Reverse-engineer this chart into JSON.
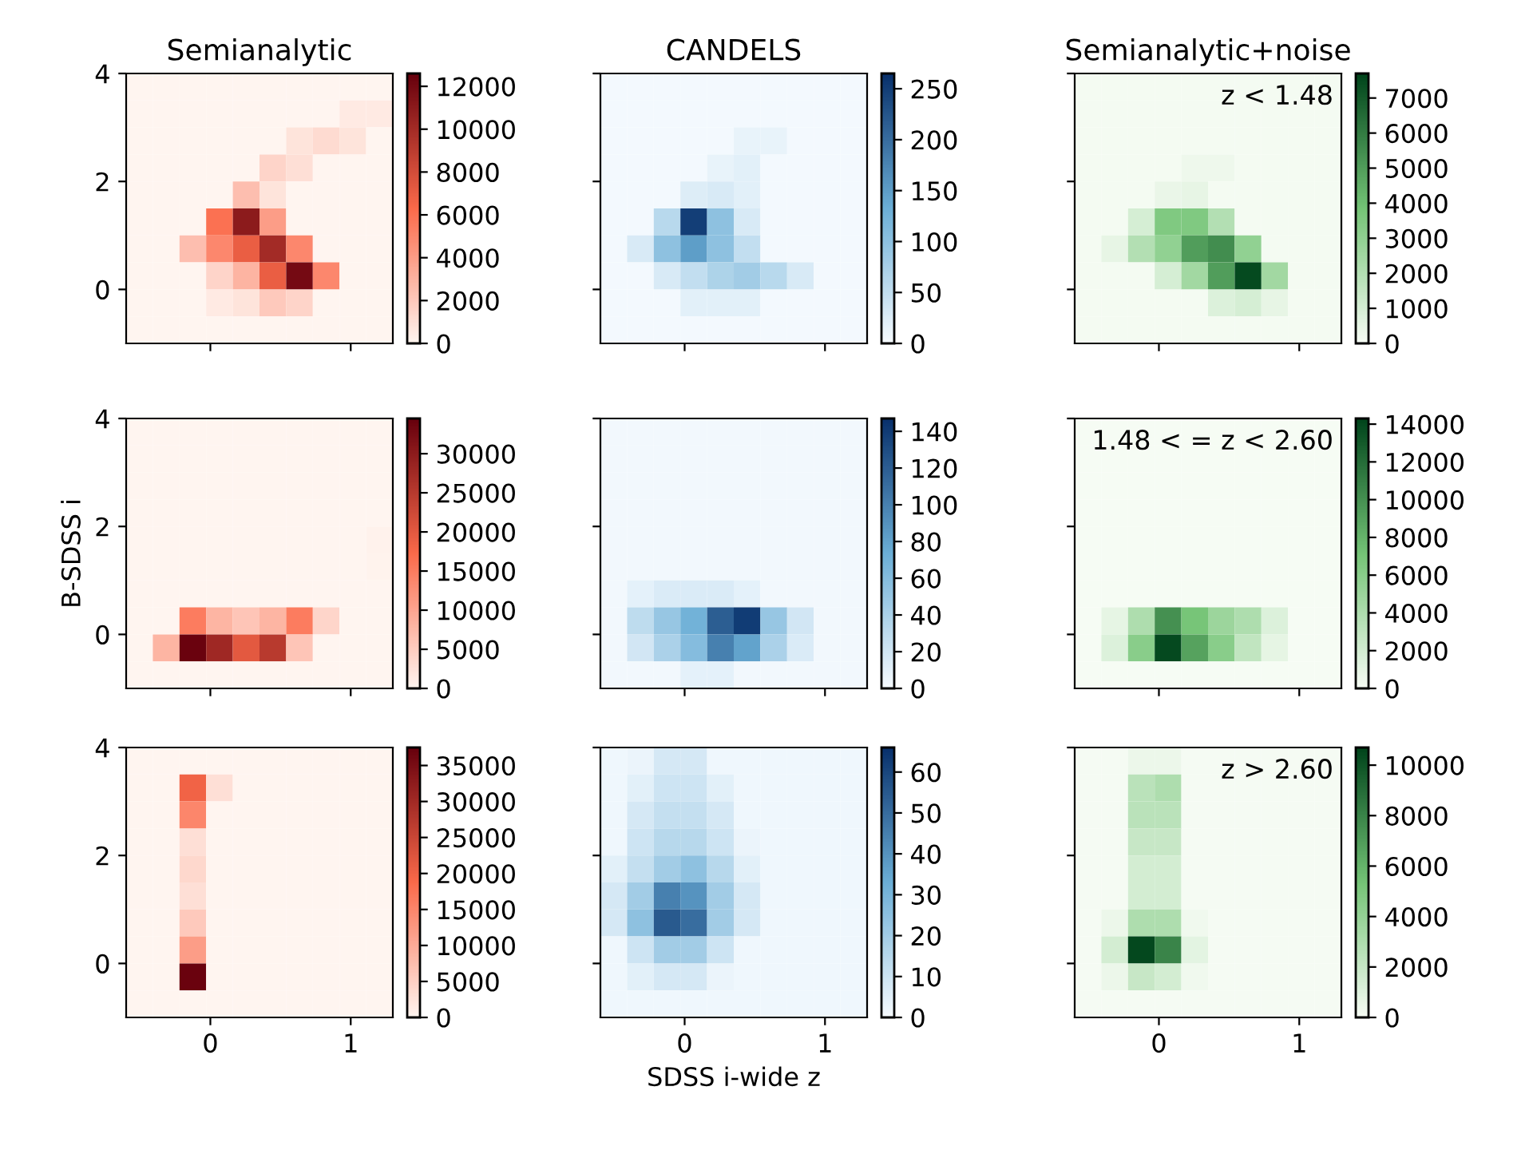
{
  "chart_data": [
    {
      "type": "heatmap",
      "title": "Semianalytic",
      "colors": [
        "#fff5f0",
        "#fb6a4a",
        "#67000d"
      ],
      "xlim": [
        -0.6,
        1.3
      ],
      "ylim": [
        -1,
        4
      ],
      "xticks": [
        0,
        1
      ],
      "yticks": [
        0,
        2,
        4
      ],
      "tick_labels": "y",
      "clim": [
        0,
        12600
      ],
      "cticks": [
        0,
        2000,
        4000,
        6000,
        8000,
        10000,
        12000
      ],
      "cells": [
        [
          0,
          0,
          0,
          0,
          0,
          0,
          0,
          0,
          0,
          0
        ],
        [
          0,
          0,
          0,
          0,
          0,
          0,
          0,
          0,
          500,
          500
        ],
        [
          0,
          0,
          0,
          0,
          0,
          0,
          800,
          1200,
          800,
          0
        ],
        [
          0,
          0,
          0,
          0,
          0,
          1500,
          1000,
          0,
          0,
          0
        ],
        [
          0,
          0,
          0,
          0,
          2500,
          800,
          0,
          0,
          0,
          0
        ],
        [
          0,
          0,
          0,
          6000,
          11000,
          4000,
          0,
          0,
          0,
          0
        ],
        [
          0,
          0,
          2500,
          5000,
          7000,
          10000,
          5000,
          0,
          0,
          0
        ],
        [
          0,
          0,
          0,
          1500,
          3000,
          7000,
          12000,
          5000,
          0,
          0
        ],
        [
          0,
          0,
          0,
          500,
          800,
          2000,
          1500,
          0,
          0,
          0
        ],
        [
          0,
          0,
          0,
          0,
          0,
          0,
          0,
          0,
          0,
          0
        ]
      ]
    },
    {
      "type": "heatmap",
      "title": "CANDELS",
      "colors": [
        "#f7fbff",
        "#6baed6",
        "#08306b"
      ],
      "xlim": [
        -0.6,
        1.3
      ],
      "ylim": [
        -1,
        4
      ],
      "xticks": [
        0,
        1
      ],
      "yticks": [
        0,
        2,
        4
      ],
      "tick_labels": false,
      "clim": [
        0,
        265
      ],
      "cticks": [
        0,
        50,
        100,
        150,
        200,
        250
      ],
      "cells": [
        [
          5,
          5,
          5,
          5,
          5,
          5,
          5,
          5,
          5,
          5
        ],
        [
          5,
          5,
          5,
          5,
          5,
          5,
          5,
          5,
          5,
          5
        ],
        [
          5,
          5,
          5,
          5,
          5,
          15,
          15,
          5,
          5,
          5
        ],
        [
          5,
          5,
          5,
          5,
          15,
          20,
          5,
          5,
          5,
          5
        ],
        [
          5,
          5,
          5,
          25,
          30,
          20,
          5,
          5,
          5,
          5
        ],
        [
          5,
          5,
          60,
          250,
          100,
          30,
          5,
          5,
          5,
          5
        ],
        [
          5,
          30,
          100,
          150,
          100,
          50,
          5,
          5,
          5,
          5
        ],
        [
          5,
          5,
          30,
          50,
          70,
          80,
          60,
          30,
          5,
          5
        ],
        [
          5,
          5,
          5,
          20,
          20,
          20,
          5,
          5,
          5,
          5
        ],
        [
          5,
          5,
          5,
          5,
          5,
          5,
          5,
          5,
          5,
          5
        ]
      ]
    },
    {
      "type": "heatmap",
      "title": "Semianalytic+noise",
      "colors": [
        "#f7fcf5",
        "#74c476",
        "#00441b"
      ],
      "xlim": [
        -0.6,
        1.3
      ],
      "ylim": [
        -1,
        4
      ],
      "xticks": [
        0,
        1
      ],
      "yticks": [
        0,
        2,
        4
      ],
      "tick_labels": false,
      "clim": [
        0,
        7700
      ],
      "cticks": [
        0,
        1000,
        2000,
        3000,
        4000,
        5000,
        6000,
        7000
      ],
      "annotations": [
        "z < 1.48"
      ],
      "cells": [
        [
          100,
          100,
          100,
          100,
          100,
          100,
          100,
          100,
          100,
          100
        ],
        [
          100,
          100,
          100,
          100,
          100,
          100,
          100,
          100,
          100,
          100
        ],
        [
          100,
          100,
          100,
          100,
          100,
          100,
          100,
          100,
          100,
          100
        ],
        [
          100,
          100,
          100,
          100,
          300,
          300,
          100,
          100,
          100,
          100
        ],
        [
          100,
          100,
          100,
          400,
          500,
          100,
          100,
          100,
          100,
          100
        ],
        [
          100,
          100,
          1000,
          3500,
          3500,
          2000,
          100,
          100,
          100,
          100
        ],
        [
          100,
          500,
          2000,
          3000,
          5000,
          5500,
          3000,
          100,
          100,
          100
        ],
        [
          100,
          100,
          100,
          1000,
          2500,
          5000,
          7500,
          2500,
          100,
          100
        ],
        [
          100,
          100,
          100,
          100,
          100,
          800,
          1000,
          500,
          100,
          100
        ],
        [
          100,
          100,
          100,
          100,
          100,
          100,
          100,
          100,
          100,
          100
        ]
      ]
    },
    {
      "type": "heatmap",
      "colors": [
        "#fff5f0",
        "#fb6a4a",
        "#67000d"
      ],
      "ylabel": "B-SDSS i",
      "xlim": [
        -0.6,
        1.3
      ],
      "ylim": [
        -1,
        4
      ],
      "xticks": [
        0,
        1
      ],
      "yticks": [
        0,
        2,
        4
      ],
      "tick_labels": "y",
      "clim": [
        0,
        34500
      ],
      "cticks": [
        0,
        5000,
        10000,
        15000,
        20000,
        25000,
        30000
      ],
      "cells": [
        [
          0,
          0,
          0,
          0,
          0,
          0,
          0,
          0,
          0,
          0
        ],
        [
          0,
          0,
          0,
          0,
          0,
          0,
          0,
          0,
          0,
          0
        ],
        [
          0,
          0,
          0,
          0,
          0,
          0,
          0,
          0,
          0,
          0
        ],
        [
          0,
          0,
          0,
          0,
          0,
          0,
          0,
          0,
          0,
          0
        ],
        [
          0,
          0,
          0,
          0,
          0,
          0,
          0,
          0,
          0,
          500
        ],
        [
          0,
          0,
          0,
          0,
          0,
          0,
          0,
          0,
          0,
          300
        ],
        [
          0,
          0,
          0,
          0,
          0,
          0,
          0,
          0,
          0,
          0
        ],
        [
          0,
          0,
          15000,
          8000,
          6000,
          8000,
          15000,
          4000,
          0,
          0
        ],
        [
          0,
          8000,
          34000,
          28000,
          20000,
          25000,
          6000,
          0,
          0,
          0
        ],
        [
          0,
          0,
          0,
          0,
          0,
          0,
          0,
          0,
          0,
          0
        ]
      ]
    },
    {
      "type": "heatmap",
      "colors": [
        "#f7fbff",
        "#6baed6",
        "#08306b"
      ],
      "xlim": [
        -0.6,
        1.3
      ],
      "ylim": [
        -1,
        4
      ],
      "xticks": [
        0,
        1
      ],
      "yticks": [
        0,
        2,
        4
      ],
      "tick_labels": false,
      "clim": [
        0,
        147
      ],
      "cticks": [
        0,
        20,
        40,
        60,
        80,
        100,
        120,
        140
      ],
      "cells": [
        [
          3,
          3,
          3,
          3,
          3,
          3,
          3,
          3,
          3,
          3
        ],
        [
          3,
          3,
          3,
          3,
          3,
          3,
          3,
          3,
          3,
          3
        ],
        [
          3,
          3,
          3,
          3,
          3,
          3,
          3,
          3,
          3,
          3
        ],
        [
          3,
          3,
          3,
          3,
          3,
          3,
          3,
          3,
          3,
          3
        ],
        [
          3,
          3,
          3,
          3,
          3,
          3,
          3,
          3,
          3,
          3
        ],
        [
          3,
          3,
          3,
          3,
          3,
          3,
          3,
          3,
          3,
          3
        ],
        [
          3,
          10,
          15,
          15,
          15,
          10,
          3,
          3,
          3,
          3
        ],
        [
          3,
          30,
          50,
          70,
          120,
          140,
          50,
          20,
          3,
          3
        ],
        [
          3,
          20,
          40,
          60,
          100,
          80,
          40,
          15,
          3,
          3
        ],
        [
          3,
          3,
          3,
          10,
          10,
          3,
          3,
          3,
          3,
          3
        ]
      ]
    },
    {
      "type": "heatmap",
      "colors": [
        "#f7fcf5",
        "#74c476",
        "#00441b"
      ],
      "xlim": [
        -0.6,
        1.3
      ],
      "ylim": [
        -1,
        4
      ],
      "xticks": [
        0,
        1
      ],
      "yticks": [
        0,
        2,
        4
      ],
      "tick_labels": false,
      "clim": [
        0,
        14300
      ],
      "cticks": [
        0,
        2000,
        4000,
        6000,
        8000,
        10000,
        12000,
        14000
      ],
      "annotations": [
        "1.48 < = z < 2.60"
      ],
      "cells": [
        [
          100,
          100,
          100,
          100,
          100,
          100,
          100,
          100,
          100,
          100
        ],
        [
          100,
          100,
          100,
          100,
          100,
          100,
          100,
          100,
          100,
          100
        ],
        [
          100,
          100,
          100,
          100,
          100,
          100,
          100,
          100,
          100,
          100
        ],
        [
          100,
          100,
          100,
          100,
          100,
          100,
          100,
          100,
          100,
          100
        ],
        [
          100,
          100,
          100,
          100,
          100,
          100,
          100,
          100,
          100,
          100
        ],
        [
          100,
          100,
          100,
          100,
          100,
          100,
          100,
          100,
          100,
          100
        ],
        [
          100,
          100,
          100,
          100,
          100,
          100,
          100,
          100,
          100,
          100
        ],
        [
          100,
          1000,
          4000,
          10000,
          7000,
          5000,
          4000,
          1500,
          100,
          100
        ],
        [
          100,
          1500,
          6000,
          14000,
          9000,
          6000,
          3000,
          1000,
          100,
          100
        ],
        [
          100,
          100,
          100,
          100,
          100,
          100,
          100,
          100,
          100,
          100
        ]
      ]
    },
    {
      "type": "heatmap",
      "colors": [
        "#fff5f0",
        "#fb6a4a",
        "#67000d"
      ],
      "xlim": [
        -0.6,
        1.3
      ],
      "ylim": [
        -1,
        4
      ],
      "xticks": [
        0,
        1
      ],
      "yticks": [
        0,
        2,
        4
      ],
      "clim": [
        0,
        37500
      ],
      "cticks": [
        0,
        5000,
        10000,
        15000,
        20000,
        25000,
        30000,
        35000
      ],
      "cells": [
        [
          0,
          0,
          0,
          0,
          0,
          0,
          0,
          0,
          0,
          0
        ],
        [
          0,
          0,
          20000,
          3000,
          0,
          0,
          0,
          0,
          0,
          0
        ],
        [
          0,
          0,
          15000,
          0,
          0,
          0,
          0,
          0,
          0,
          0
        ],
        [
          0,
          0,
          3000,
          0,
          0,
          0,
          0,
          0,
          0,
          0
        ],
        [
          0,
          0,
          4000,
          0,
          0,
          0,
          0,
          0,
          0,
          0
        ],
        [
          0,
          0,
          3000,
          0,
          0,
          0,
          0,
          0,
          0,
          0
        ],
        [
          0,
          0,
          6000,
          0,
          0,
          0,
          0,
          0,
          0,
          0
        ],
        [
          0,
          0,
          12000,
          0,
          0,
          0,
          0,
          0,
          0,
          0
        ],
        [
          0,
          0,
          37000,
          0,
          0,
          0,
          0,
          0,
          0,
          0
        ],
        [
          0,
          0,
          0,
          0,
          0,
          0,
          0,
          0,
          0,
          0
        ]
      ]
    },
    {
      "type": "heatmap",
      "colors": [
        "#f7fbff",
        "#6baed6",
        "#08306b"
      ],
      "xlabel": "SDSS i-wide z",
      "xlim": [
        -0.6,
        1.3
      ],
      "ylim": [
        -1,
        4
      ],
      "xticks": [
        0,
        1
      ],
      "yticks": [
        0,
        2,
        4
      ],
      "tick_labels": "x",
      "clim": [
        0,
        66
      ],
      "cticks": [
        0,
        10,
        20,
        30,
        40,
        50,
        60
      ],
      "cells": [
        [
          2,
          3,
          8,
          8,
          2,
          2,
          2,
          2,
          2,
          2
        ],
        [
          2,
          5,
          10,
          10,
          5,
          2,
          2,
          2,
          2,
          2
        ],
        [
          2,
          8,
          12,
          12,
          8,
          2,
          2,
          2,
          2,
          2
        ],
        [
          2,
          10,
          15,
          15,
          10,
          3,
          2,
          2,
          2,
          2
        ],
        [
          5,
          12,
          20,
          25,
          15,
          5,
          2,
          2,
          2,
          2
        ],
        [
          8,
          20,
          45,
          40,
          20,
          8,
          2,
          2,
          2,
          2
        ],
        [
          8,
          25,
          55,
          50,
          20,
          8,
          2,
          2,
          2,
          2
        ],
        [
          2,
          10,
          20,
          20,
          10,
          2,
          2,
          2,
          2,
          2
        ],
        [
          2,
          5,
          8,
          8,
          3,
          2,
          2,
          2,
          2,
          2
        ],
        [
          2,
          2,
          2,
          2,
          2,
          2,
          2,
          2,
          2,
          2
        ]
      ]
    },
    {
      "type": "heatmap",
      "colors": [
        "#f7fcf5",
        "#74c476",
        "#00441b"
      ],
      "xlim": [
        -0.6,
        1.3
      ],
      "ylim": [
        -1,
        4
      ],
      "xticks": [
        0,
        1
      ],
      "yticks": [
        0,
        2,
        4
      ],
      "tick_labels": "x",
      "clim": [
        0,
        10700
      ],
      "cticks": [
        0,
        2000,
        4000,
        6000,
        8000,
        10000
      ],
      "annotations": [
        "z > 2.60"
      ],
      "cells": [
        [
          100,
          100,
          500,
          500,
          100,
          100,
          100,
          100,
          100,
          100
        ],
        [
          100,
          100,
          2500,
          3000,
          100,
          100,
          100,
          100,
          100,
          100
        ],
        [
          100,
          100,
          2500,
          2500,
          100,
          100,
          100,
          100,
          100,
          100
        ],
        [
          100,
          100,
          2000,
          2000,
          100,
          100,
          100,
          100,
          100,
          100
        ],
        [
          100,
          100,
          1500,
          1500,
          100,
          100,
          100,
          100,
          100,
          100
        ],
        [
          100,
          100,
          1500,
          1500,
          100,
          100,
          100,
          100,
          100,
          100
        ],
        [
          100,
          500,
          3000,
          3000,
          300,
          100,
          100,
          100,
          100,
          100
        ],
        [
          100,
          1500,
          10500,
          8000,
          800,
          100,
          100,
          100,
          100,
          100
        ],
        [
          100,
          500,
          2000,
          1500,
          300,
          100,
          100,
          100,
          100,
          100
        ],
        [
          100,
          100,
          100,
          100,
          100,
          100,
          100,
          100,
          100,
          100
        ]
      ]
    }
  ]
}
